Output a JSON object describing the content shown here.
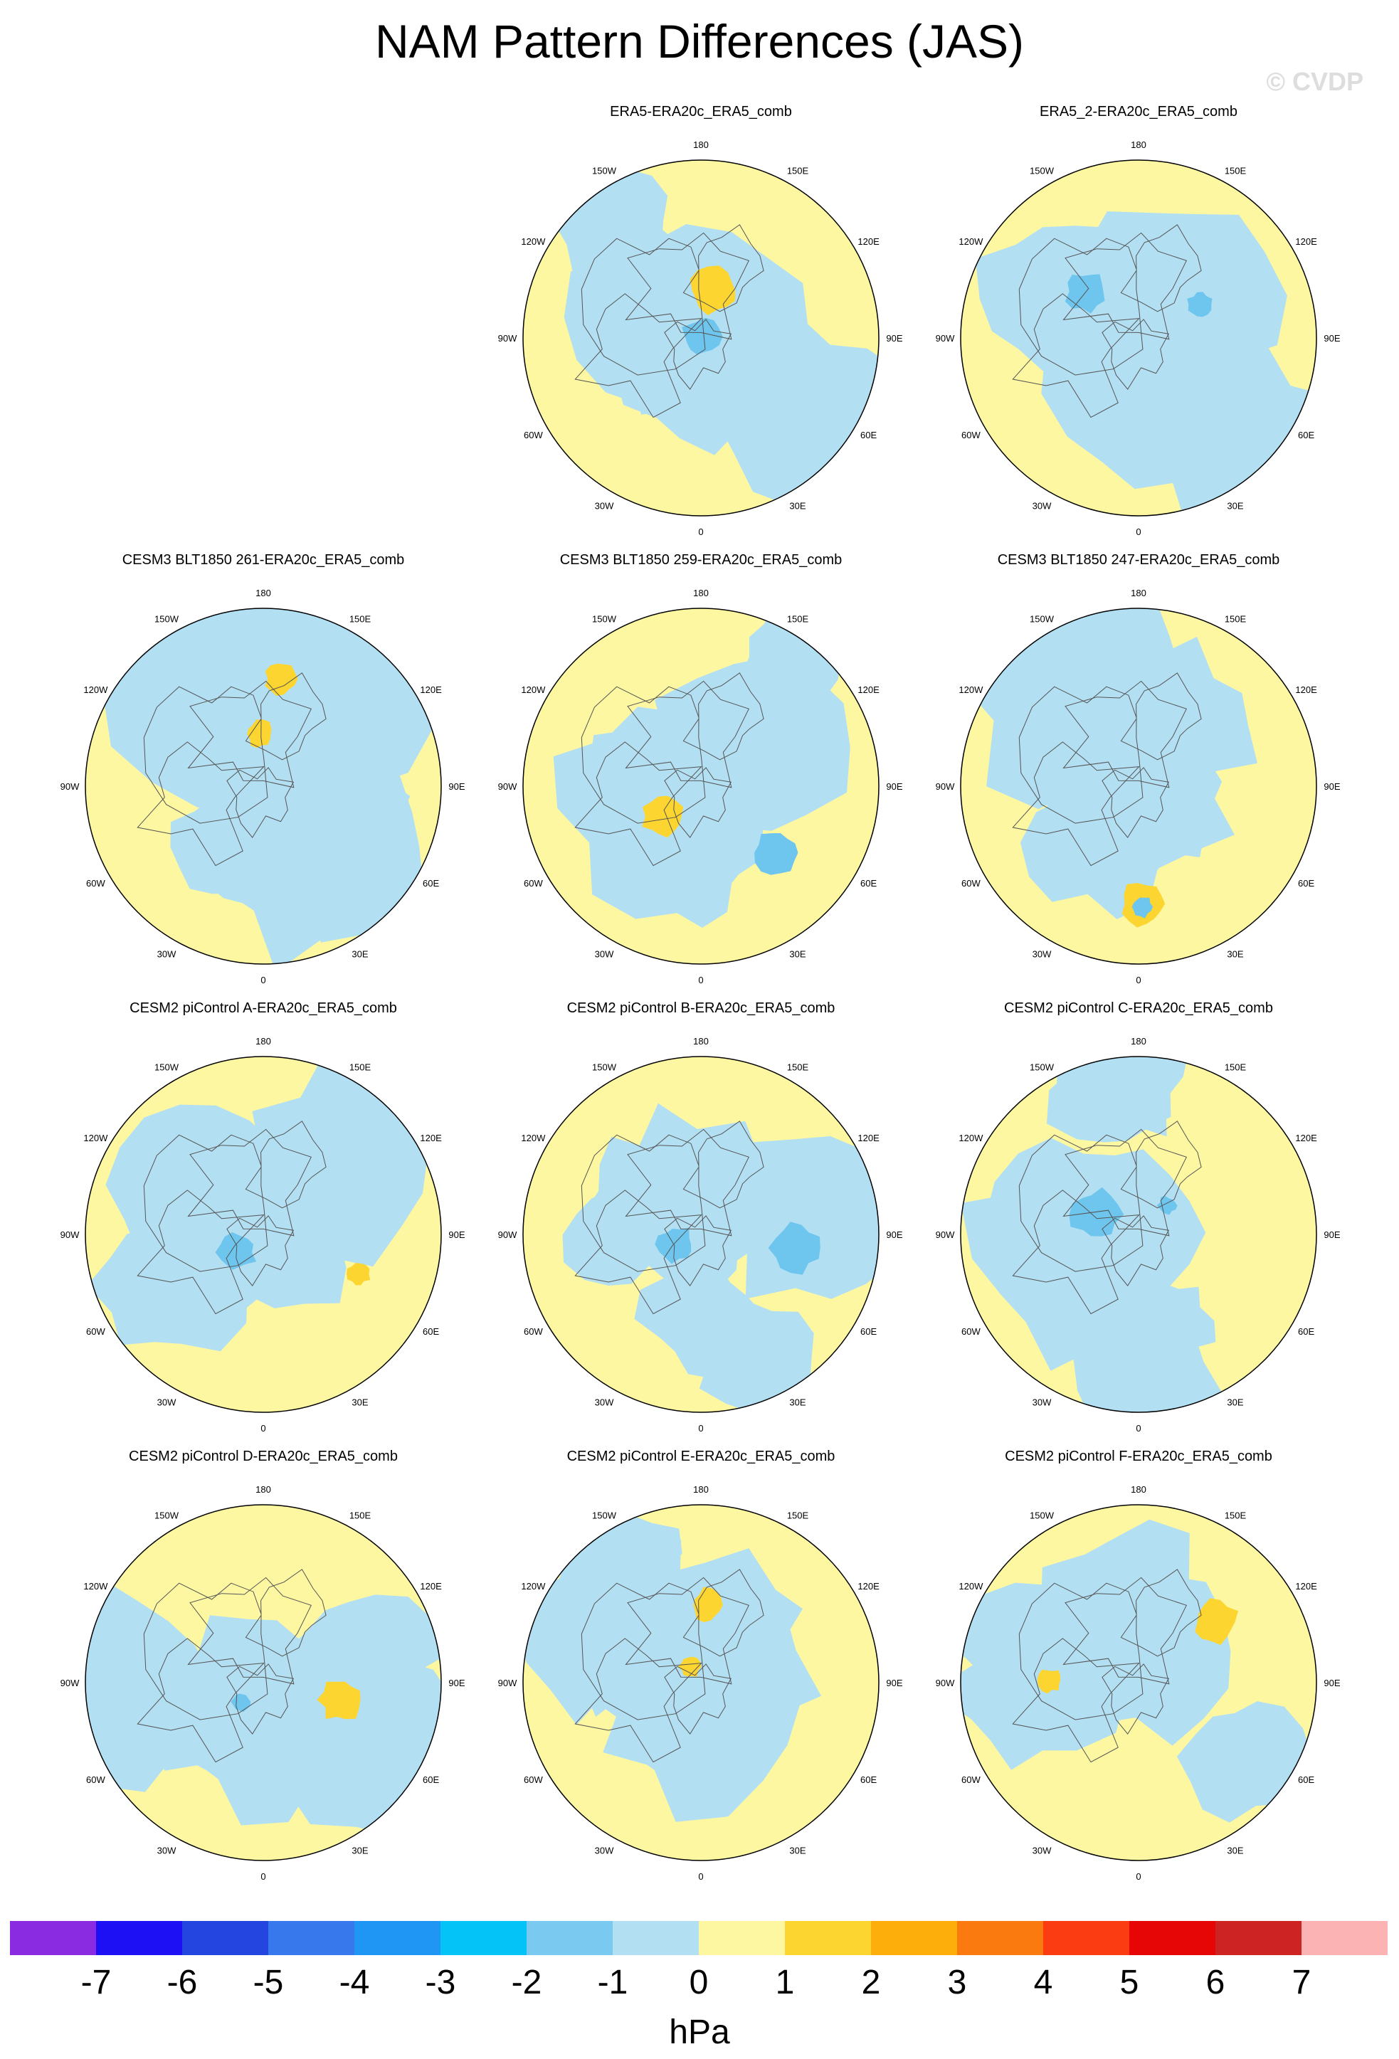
{
  "title": "NAM Pattern Differences (JAS)",
  "watermark": "© CVDP",
  "colors": {
    "ocean_neg": "#b3dff3",
    "pos_fill": "#fdf7a2",
    "pos2": "#fcd530",
    "neg2": "#6ec6ee",
    "coast": "#555555"
  },
  "lon_labels": [
    "180",
    "150E",
    "120E",
    "90E",
    "60E",
    "30E",
    "0",
    "30W",
    "60W",
    "90W",
    "120W",
    "150W"
  ],
  "panels": [
    {
      "id": "p1",
      "title": "ERA5-ERA20c_ERA5_comb",
      "row": 0,
      "col": 1,
      "seed": 11
    },
    {
      "id": "p2",
      "title": "ERA5_2-ERA20c_ERA5_comb",
      "row": 0,
      "col": 2,
      "seed": 23
    },
    {
      "id": "p3",
      "title": "CESM3 BLT1850 261-ERA20c_ERA5_comb",
      "row": 1,
      "col": 0,
      "seed": 37
    },
    {
      "id": "p4",
      "title": "CESM3 BLT1850 259-ERA20c_ERA5_comb",
      "row": 1,
      "col": 1,
      "seed": 41
    },
    {
      "id": "p5",
      "title": "CESM3 BLT1850 247-ERA20c_ERA5_comb",
      "row": 1,
      "col": 2,
      "seed": 53
    },
    {
      "id": "p6",
      "title": "CESM2 piControl A-ERA20c_ERA5_comb",
      "row": 2,
      "col": 0,
      "seed": 67
    },
    {
      "id": "p7",
      "title": "CESM2 piControl B-ERA20c_ERA5_comb",
      "row": 2,
      "col": 1,
      "seed": 71
    },
    {
      "id": "p8",
      "title": "CESM2 piControl C-ERA20c_ERA5_comb",
      "row": 2,
      "col": 2,
      "seed": 83
    },
    {
      "id": "p9",
      "title": "CESM2 piControl D-ERA20c_ERA5_comb",
      "row": 3,
      "col": 0,
      "seed": 97
    },
    {
      "id": "p10",
      "title": "CESM2 piControl E-ERA20c_ERA5_comb",
      "row": 3,
      "col": 1,
      "seed": 101
    },
    {
      "id": "p11",
      "title": "CESM2 piControl F-ERA20c_ERA5_comb",
      "row": 3,
      "col": 2,
      "seed": 113
    }
  ],
  "colorbar": {
    "unit": "hPa",
    "labels": [
      "-7",
      "-6",
      "-5",
      "-4",
      "-3",
      "-2",
      "-1",
      "0",
      "1",
      "2",
      "3",
      "4",
      "5",
      "6",
      "7"
    ],
    "colors": [
      "#8a2be2",
      "#1e10f5",
      "#2545e0",
      "#3778ec",
      "#2096f4",
      "#04c3f6",
      "#79c9f1",
      "#b3dff3",
      "#fdf7a2",
      "#fcd530",
      "#fdae0a",
      "#fb7a10",
      "#fb3b12",
      "#e70606",
      "#ce2323",
      "#fcb3b3"
    ]
  }
}
